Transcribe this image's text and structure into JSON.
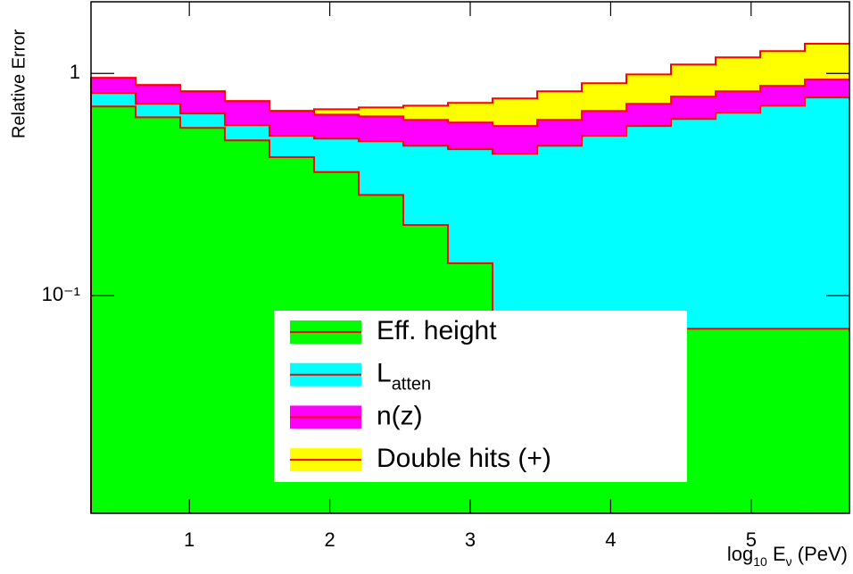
{
  "chart_data": {
    "type": "stacked_histogram",
    "y_label": "Relative Error",
    "x_label": [
      {
        "text": "log",
        "sub": false
      },
      {
        "text": "10",
        "sub": true
      },
      {
        "text": " E",
        "sub": false
      },
      {
        "text": "ν",
        "sub": true
      },
      {
        "text": " (PeV)",
        "sub": false
      }
    ],
    "bins": [
      0.3,
      0.6176,
      0.9353,
      1.2529,
      1.5706,
      1.8882,
      2.2059,
      2.5235,
      2.8412,
      3.1588,
      3.4765,
      3.7941,
      4.1118,
      4.4294,
      4.7471,
      5.0647,
      5.3824,
      5.7
    ],
    "xlim": [
      0.3,
      5.7
    ],
    "xticks": [
      1,
      2,
      3,
      4,
      5
    ],
    "ylim": [
      0.0105,
      2.1
    ],
    "yticks": [
      1,
      {
        "value": 0.1,
        "label": "10⁻¹"
      }
    ],
    "log_y": true,
    "line_color": "#ff0000",
    "series": [
      {
        "name": "Eff. height",
        "color": "#00ff00",
        "values": [
          0.71,
          0.635,
          0.569,
          0.5,
          0.42,
          0.36,
          0.284,
          0.208,
          0.14,
          0.071,
          0.071,
          0.071,
          0.071,
          0.071,
          0.071,
          0.071,
          0.071
        ]
      },
      {
        "name": "L",
        "name_subscript": "atten",
        "color": "#00ffff",
        "values": [
          0.106,
          0.095,
          0.091,
          0.085,
          0.104,
          0.149,
          0.211,
          0.265,
          0.316,
          0.364,
          0.402,
          0.453,
          0.509,
          0.553,
          0.595,
          0.645,
          0.709
        ]
      },
      {
        "name": "n(z)",
        "color": "#ff00ff",
        "values": [
          0.139,
          0.157,
          0.171,
          0.166,
          0.154,
          0.144,
          0.146,
          0.145,
          0.145,
          0.145,
          0.145,
          0.154,
          0.15,
          0.163,
          0.165,
          0.163,
          0.158
        ]
      },
      {
        "name": "Double hits (+)",
        "color": "#ffff00",
        "values": [
          0,
          0,
          0,
          0,
          0,
          0.037,
          0.062,
          0.098,
          0.136,
          0.192,
          0.213,
          0.225,
          0.26,
          0.31,
          0.35,
          0.381,
          0.422
        ]
      }
    ]
  }
}
